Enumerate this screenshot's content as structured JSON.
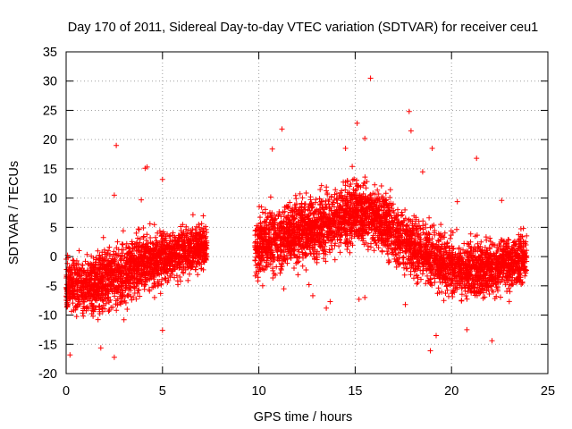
{
  "chart_data": {
    "type": "scatter",
    "title": "Day 170 of 2011, Sidereal Day-to-day VTEC variation (SDTVAR) for receiver ceu1",
    "xlabel": "GPS time / hours",
    "ylabel": "SDTVAR / TECUs",
    "xlim": [
      0,
      25
    ],
    "ylim": [
      -20,
      35
    ],
    "x_ticks": [
      0,
      5,
      10,
      15,
      20,
      25
    ],
    "y_ticks": [
      -20,
      -15,
      -10,
      -5,
      0,
      5,
      10,
      15,
      20,
      25,
      30,
      35
    ],
    "grid": true,
    "marker": "+",
    "color": "#ff0000",
    "series": [
      {
        "name": "SDTVAR",
        "segments": [
          {
            "x_range": [
              0,
              7.3
            ],
            "trend_points": [
              [
                0,
                -5
              ],
              [
                1,
                -5
              ],
              [
                2,
                -4
              ],
              [
                3,
                -3
              ],
              [
                4,
                -1
              ],
              [
                5,
                0
              ],
              [
                6,
                1
              ],
              [
                7,
                1.5
              ]
            ],
            "spread_by_x": [
              [
                0,
                3
              ],
              [
                2,
                3.5
              ],
              [
                5,
                3
              ],
              [
                7.3,
                2.5
              ]
            ]
          },
          {
            "x_range": [
              9.8,
              23.9
            ],
            "trend_points": [
              [
                10,
                2
              ],
              [
                11,
                3
              ],
              [
                12,
                4
              ],
              [
                13,
                5
              ],
              [
                14,
                6
              ],
              [
                15,
                8
              ],
              [
                16,
                7
              ],
              [
                17,
                4
              ],
              [
                18,
                2
              ],
              [
                19,
                0
              ],
              [
                20,
                -2
              ],
              [
                21,
                -2.5
              ],
              [
                22,
                -2
              ],
              [
                23,
                -1
              ],
              [
                23.9,
                0
              ]
            ],
            "spread_by_x": [
              [
                9.8,
                3.5
              ],
              [
                15,
                3.5
              ],
              [
                20,
                3
              ],
              [
                23.9,
                3
              ]
            ]
          }
        ],
        "outliers": [
          [
            15.8,
            30.5
          ],
          [
            17.8,
            24.8
          ],
          [
            15.1,
            22.8
          ],
          [
            11.2,
            21.8
          ],
          [
            17.9,
            21.5
          ],
          [
            15.5,
            20.2
          ],
          [
            2.6,
            19
          ],
          [
            14.5,
            18.5
          ],
          [
            19,
            18.5
          ],
          [
            10.7,
            18.4
          ],
          [
            21.3,
            16.8
          ],
          [
            4.2,
            15.3
          ],
          [
            4.1,
            15.1
          ],
          [
            18.5,
            14.5
          ],
          [
            5,
            13.2
          ],
          [
            2.5,
            10.5
          ],
          [
            3.9,
            9.7
          ],
          [
            22.6,
            9.6
          ],
          [
            20.3,
            9.4
          ],
          [
            0.2,
            -16.8
          ],
          [
            2.5,
            -17.2
          ],
          [
            1.8,
            -15.6
          ],
          [
            18.9,
            -16.1
          ],
          [
            19.2,
            -13.5
          ],
          [
            5,
            -12.6
          ],
          [
            20.8,
            -12.5
          ],
          [
            22.1,
            -14.4
          ],
          [
            13.5,
            -8.8
          ],
          [
            13.7,
            -7.7
          ],
          [
            15.2,
            -7.3
          ],
          [
            15.5,
            -7.0
          ],
          [
            17.6,
            -8.2
          ],
          [
            19.6,
            -7.5
          ],
          [
            10.2,
            -5.0
          ],
          [
            11.3,
            -5.5
          ],
          [
            12.8,
            -6.7
          ],
          [
            12.6,
            -4.8
          ],
          [
            6.4,
            -3.0
          ]
        ]
      }
    ]
  }
}
